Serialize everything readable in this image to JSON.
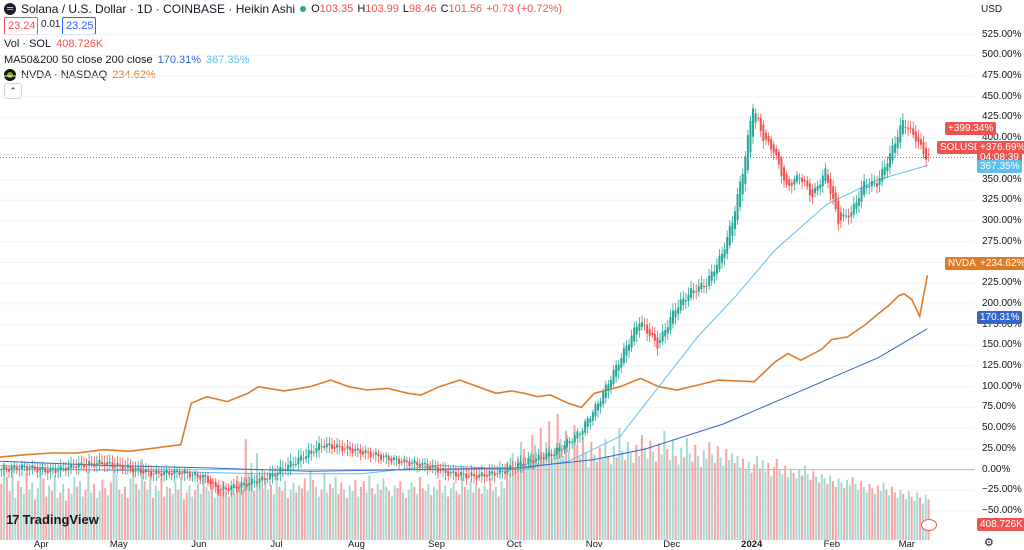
{
  "header": {
    "symbol_title": "Solana / U.S. Dollar · 1D · COINBASE · Heikin Ashi",
    "ohlc": [
      {
        "k": "O",
        "v": "103.35"
      },
      {
        "k": "H",
        "v": "103.99"
      },
      {
        "k": "L",
        "v": "98.46"
      },
      {
        "k": "C",
        "v": "101.56"
      },
      {
        "k": "",
        "v": "+0.73 (+0.72%)"
      }
    ],
    "sell_price": "23.24",
    "spread": "0.01",
    "buy_price": "23.25",
    "volume_label": "Vol · SOL",
    "volume_value": "408.726K",
    "ma_label": "MA50&200 50 close 200 close",
    "ma_value1": "170.31%",
    "ma_value2": "367.35%",
    "compare_label": "NVDA · NASDAQ",
    "compare_value": "234.62%",
    "collapse_icon": "chevron-up-icon"
  },
  "currency": "USD",
  "branding": "TradingView",
  "price_tags": {
    "sol_high": "+399.34%",
    "sol_symbol": "SOLUSD",
    "sol_current": "+376.69%",
    "sol_countdown": "04:08:39",
    "ma200": "367.35%",
    "nvda_symbol": "NVDA",
    "nvda_value": "+234.62%",
    "ma50": "170.31%",
    "volume": "408.726K"
  },
  "colors": {
    "up": "#26a69a",
    "down": "#ef5350",
    "nvda": "#e07b25",
    "ma_light": "#5bc0eb",
    "ma_dark": "#3366cc",
    "vol_up": "#a8d8d1",
    "vol_down": "#f4a6a4"
  },
  "chart_data": {
    "type": "line",
    "y_axis_ticks": [
      "525.00%",
      "500.00%",
      "475.00%",
      "450.00%",
      "425.00%",
      "400.00%",
      "350.00%",
      "325.00%",
      "300.00%",
      "275.00%",
      "250.00%",
      "225.00%",
      "200.00%",
      "175.00%",
      "150.00%",
      "125.00%",
      "100.00%",
      "75.00%",
      "50.00%",
      "25.00%",
      "0.00%",
      "−25.00%",
      "−50.00%"
    ],
    "y_axis_values": [
      525,
      500,
      475,
      450,
      425,
      400,
      350,
      325,
      300,
      275,
      250,
      225,
      200,
      175,
      150,
      125,
      100,
      75,
      50,
      25,
      0,
      -25,
      -50
    ],
    "ylim": [
      -85,
      545
    ],
    "x_axis_ticks": [
      {
        "label": "Apr",
        "day": 16
      },
      {
        "label": "May",
        "day": 46
      },
      {
        "label": "Jun",
        "day": 77
      },
      {
        "label": "Jul",
        "day": 107
      },
      {
        "label": "Aug",
        "day": 138
      },
      {
        "label": "Sep",
        "day": 169
      },
      {
        "label": "Oct",
        "day": 199
      },
      {
        "label": "Nov",
        "day": 230
      },
      {
        "label": "Dec",
        "day": 260
      },
      {
        "label": "2024",
        "day": 291,
        "bold": true
      },
      {
        "label": "Feb",
        "day": 322
      },
      {
        "label": "Mar",
        "day": 351
      }
    ],
    "xlim": [
      0,
      360
    ],
    "series": [
      {
        "kind": "nvda",
        "name": "NVDA · NASDAQ",
        "points": [
          [
            0,
            15
          ],
          [
            10,
            18
          ],
          [
            20,
            20
          ],
          [
            30,
            20
          ],
          [
            40,
            24
          ],
          [
            50,
            22
          ],
          [
            60,
            26
          ],
          [
            70,
            30
          ],
          [
            74,
            80
          ],
          [
            80,
            88
          ],
          [
            88,
            82
          ],
          [
            96,
            92
          ],
          [
            100,
            100
          ],
          [
            110,
            95
          ],
          [
            120,
            100
          ],
          [
            128,
            108
          ],
          [
            135,
            100
          ],
          [
            142,
            96
          ],
          [
            150,
            98
          ],
          [
            158,
            92
          ],
          [
            163,
            90
          ],
          [
            170,
            100
          ],
          [
            178,
            108
          ],
          [
            185,
            100
          ],
          [
            192,
            92
          ],
          [
            198,
            95
          ],
          [
            203,
            92
          ],
          [
            208,
            88
          ],
          [
            213,
            90
          ],
          [
            220,
            80
          ],
          [
            225,
            75
          ],
          [
            230,
            92
          ],
          [
            240,
            100
          ],
          [
            248,
            110
          ],
          [
            255,
            100
          ],
          [
            262,
            96
          ],
          [
            270,
            102
          ],
          [
            278,
            108
          ],
          [
            285,
            107
          ],
          [
            292,
            106
          ],
          [
            300,
            130
          ],
          [
            305,
            140
          ],
          [
            310,
            132
          ],
          [
            318,
            145
          ],
          [
            322,
            157
          ],
          [
            328,
            160
          ],
          [
            335,
            175
          ],
          [
            340,
            188
          ],
          [
            344,
            198
          ],
          [
            348,
            210
          ],
          [
            350,
            212
          ],
          [
            353,
            205
          ],
          [
            356,
            185
          ],
          [
            359,
            234.6
          ]
        ]
      },
      {
        "kind": "ma_light",
        "name": "367.35%",
        "points": [
          [
            0,
            5
          ],
          [
            30,
            0
          ],
          [
            60,
            -2
          ],
          [
            100,
            -5
          ],
          [
            140,
            -5
          ],
          [
            170,
            5
          ],
          [
            200,
            0
          ],
          [
            220,
            10
          ],
          [
            240,
            40
          ],
          [
            255,
            100
          ],
          [
            270,
            160
          ],
          [
            285,
            210
          ],
          [
            300,
            265
          ],
          [
            320,
            320
          ],
          [
            340,
            350
          ],
          [
            359,
            367
          ]
        ]
      },
      {
        "kind": "ma_dark",
        "name": "170.31%",
        "points": [
          [
            0,
            10
          ],
          [
            40,
            5
          ],
          [
            80,
            2
          ],
          [
            120,
            -2
          ],
          [
            160,
            0
          ],
          [
            200,
            2
          ],
          [
            230,
            12
          ],
          [
            250,
            25
          ],
          [
            265,
            40
          ],
          [
            280,
            55
          ],
          [
            295,
            75
          ],
          [
            310,
            95
          ],
          [
            325,
            115
          ],
          [
            340,
            135
          ],
          [
            359,
            170
          ]
        ]
      },
      {
        "kind": "sol",
        "name": "SOLUSD",
        "points": [
          [
            0,
            0
          ],
          [
            10,
            3
          ],
          [
            20,
            -2
          ],
          [
            30,
            5
          ],
          [
            40,
            8
          ],
          [
            50,
            2
          ],
          [
            60,
            -5
          ],
          [
            70,
            -3
          ],
          [
            80,
            -10
          ],
          [
            85,
            -25
          ],
          [
            95,
            -18
          ],
          [
            105,
            -8
          ],
          [
            115,
            10
          ],
          [
            125,
            30
          ],
          [
            135,
            25
          ],
          [
            145,
            18
          ],
          [
            155,
            10
          ],
          [
            165,
            5
          ],
          [
            175,
            -5
          ],
          [
            185,
            -8
          ],
          [
            195,
            -2
          ],
          [
            205,
            10
          ],
          [
            215,
            20
          ],
          [
            225,
            45
          ],
          [
            232,
            80
          ],
          [
            240,
            130
          ],
          [
            248,
            180
          ],
          [
            255,
            150
          ],
          [
            262,
            195
          ],
          [
            268,
            215
          ],
          [
            274,
            225
          ],
          [
            280,
            260
          ],
          [
            284,
            300
          ],
          [
            288,
            360
          ],
          [
            292,
            440
          ],
          [
            296,
            400
          ],
          [
            300,
            385
          ],
          [
            305,
            340
          ],
          [
            310,
            355
          ],
          [
            315,
            330
          ],
          [
            320,
            360
          ],
          [
            325,
            300
          ],
          [
            330,
            310
          ],
          [
            335,
            345
          ],
          [
            340,
            345
          ],
          [
            345,
            380
          ],
          [
            350,
            420
          ],
          [
            355,
            400
          ],
          [
            359,
            376.7
          ]
        ]
      }
    ],
    "volume": [
      0.4,
      0.55,
      0.45,
      0.35,
      0.5,
      0.3,
      0.42,
      0.38,
      0.33,
      0.48,
      0.36,
      0.41,
      0.29,
      0.37,
      0.52,
      0.44,
      0.31,
      0.39,
      0.35,
      0.46,
      0.3,
      0.34,
      0.4,
      0.28,
      0.37,
      0.33,
      0.45,
      0.38,
      0.42,
      0.31,
      0.36,
      0.49,
      0.34,
      0.4,
      0.3,
      0.35,
      0.43,
      0.37,
      0.32,
      0.41,
      0.55,
      0.47,
      0.36,
      0.33,
      0.38,
      0.3,
      0.44,
      0.52,
      0.4,
      0.36,
      0.58,
      0.42,
      0.36,
      0.48,
      0.3,
      0.39,
      0.35,
      0.44,
      0.31,
      0.38,
      0.37,
      0.33,
      0.42,
      0.36,
      0.45,
      0.29,
      0.34,
      0.39,
      0.31,
      0.36,
      0.41,
      0.33,
      0.47,
      0.38,
      0.35,
      0.44,
      0.3,
      0.39,
      0.36,
      0.42,
      0.34,
      0.31,
      0.38,
      0.33,
      0.46,
      0.4,
      0.36,
      0.72,
      0.48,
      0.55,
      0.35,
      0.62,
      0.41,
      0.37,
      0.44,
      0.36,
      0.39,
      0.33,
      0.47,
      0.38,
      0.35,
      0.42,
      0.3,
      0.36,
      0.41,
      0.34,
      0.39,
      0.37,
      0.44,
      0.35,
      0.5,
      0.43,
      0.38,
      0.31,
      0.36,
      0.48,
      0.34,
      0.4,
      0.37,
      0.45,
      0.33,
      0.41,
      0.36,
      0.3,
      0.39,
      0.35,
      0.43,
      0.31,
      0.38,
      0.42,
      0.34,
      0.46,
      0.37,
      0.33,
      0.4,
      0.36,
      0.44,
      0.38,
      0.35,
      0.31,
      0.39,
      0.37,
      0.42,
      0.34,
      0.3,
      0.36,
      0.41,
      0.38,
      0.33,
      0.45,
      0.37,
      0.35,
      0.4,
      0.32,
      0.38,
      0.36,
      0.43,
      0.34,
      0.39,
      0.31,
      0.37,
      0.41,
      0.35,
      0.33,
      0.46,
      0.38,
      0.36,
      0.42,
      0.34,
      0.4,
      0.37,
      0.33,
      0.39,
      0.36,
      0.44,
      0.35,
      0.38,
      0.31,
      0.42,
      0.37,
      0.55,
      0.48,
      0.62,
      0.5,
      0.58,
      0.7,
      0.65,
      0.52,
      0.6,
      0.75,
      0.68,
      0.55,
      0.8,
      0.62,
      0.7,
      0.85,
      0.58,
      0.66,
      0.9,
      0.72,
      0.6,
      0.78,
      0.64,
      0.55,
      0.82,
      0.68,
      0.59,
      0.74,
      0.63,
      0.52,
      0.7,
      0.61,
      0.56,
      0.66,
      0.58,
      0.72,
      0.6,
      0.54,
      0.67,
      0.59,
      0.8,
      0.64,
      0.57,
      0.7,
      0.62,
      0.55,
      0.68,
      0.6,
      0.75,
      0.66,
      0.58,
      0.71,
      0.63,
      0.56,
      0.69,
      0.61,
      0.78,
      0.65,
      0.57,
      0.72,
      0.6,
      0.54,
      0.66,
      0.59,
      0.73,
      0.62,
      0.56,
      0.68,
      0.6,
      0.52,
      0.64,
      0.58,
      0.7,
      0.61,
      0.55,
      0.67,
      0.59,
      0.53,
      0.65,
      0.57,
      0.62,
      0.55,
      0.6,
      0.52,
      0.58,
      0.5,
      0.56,
      0.48,
      0.54,
      0.6,
      0.51,
      0.57,
      0.49,
      0.55,
      0.46,
      0.52,
      0.58,
      0.5,
      0.47,
      0.53,
      0.45,
      0.51,
      0.48,
      0.44,
      0.5,
      0.46,
      0.53,
      0.47,
      0.43,
      0.49,
      0.45,
      0.41,
      0.47,
      0.44,
      0.4,
      0.46,
      0.42,
      0.38,
      0.44,
      0.41,
      0.37,
      0.43,
      0.39,
      0.45,
      0.4,
      0.36,
      0.42,
      0.38,
      0.34,
      0.4,
      0.37,
      0.33,
      0.39,
      0.35,
      0.41,
      0.36,
      0.32,
      0.38,
      0.34,
      0.3,
      0.36,
      0.33,
      0.29,
      0.35,
      0.31,
      0.28,
      0.34,
      0.3,
      0.26,
      0.32,
      0.29
    ]
  }
}
